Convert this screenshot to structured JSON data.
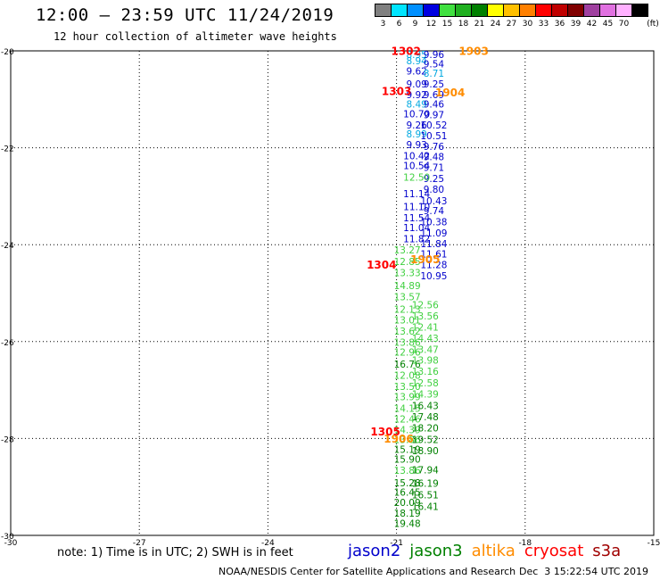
{
  "header": {
    "title": "12:00 – 23:59 UTC 11/24/2019",
    "subtitle": "12 hour collection of altimeter wave heights"
  },
  "colorbar": {
    "unit_label": "(ft)",
    "bins": [
      {
        "label": "3",
        "color": "#808080"
      },
      {
        "label": "6",
        "color": "#00e5ff"
      },
      {
        "label": "9",
        "color": "#0090ff"
      },
      {
        "label": "12",
        "color": "#0000e0"
      },
      {
        "label": "15",
        "color": "#40e040"
      },
      {
        "label": "18",
        "color": "#20b020"
      },
      {
        "label": "21",
        "color": "#008000"
      },
      {
        "label": "24",
        "color": "#ffff00"
      },
      {
        "label": "27",
        "color": "#ffc000"
      },
      {
        "label": "30",
        "color": "#ff8000"
      },
      {
        "label": "33",
        "color": "#ff0000"
      },
      {
        "label": "36",
        "color": "#c00000"
      },
      {
        "label": "39",
        "color": "#800000"
      },
      {
        "label": "42",
        "color": "#a040a0"
      },
      {
        "label": "45",
        "color": "#e070e0"
      },
      {
        "label": "70",
        "color": "#ffb0ff"
      },
      {
        "label": "",
        "color": "#000000"
      }
    ]
  },
  "chart_data": {
    "type": "scatter",
    "title": "12:00 – 23:59 UTC 11/24/2019",
    "subtitle": "12 hour collection of altimeter wave heights",
    "xlim": [
      -30,
      -15
    ],
    "ylim": [
      -30,
      -20
    ],
    "x_ticks": [
      "-30",
      "-27",
      "-24",
      "-21",
      "-18",
      "-15"
    ],
    "y_ticks": [
      "-20",
      "-22",
      "-24",
      "-26",
      "-28",
      "-30"
    ],
    "grid": true,
    "series": [
      {
        "name": "jason2",
        "color": "#0000cc",
        "points": [
          {
            "x": -20.53,
            "y": -20.07,
            "v": "8.95",
            "c": "#00a8e0"
          },
          {
            "x": -20.53,
            "y": -20.2,
            "v": "8.94",
            "c": "#00a8e0"
          },
          {
            "x": -20.53,
            "y": -20.41,
            "v": "9.62"
          },
          {
            "x": -20.53,
            "y": -20.68,
            "v": "9.09"
          },
          {
            "x": -20.53,
            "y": -20.9,
            "v": "9.92"
          },
          {
            "x": -20.53,
            "y": -21.1,
            "v": "8.49",
            "c": "#00a8e0"
          },
          {
            "x": -20.53,
            "y": -21.3,
            "v": "10.70"
          },
          {
            "x": -20.53,
            "y": -21.53,
            "v": "9.26"
          },
          {
            "x": -20.53,
            "y": -21.71,
            "v": "8.99",
            "c": "#00a8e0"
          },
          {
            "x": -20.53,
            "y": -21.93,
            "v": "9.93"
          },
          {
            "x": -20.53,
            "y": -22.16,
            "v": "10.42"
          },
          {
            "x": -20.53,
            "y": -22.37,
            "v": "10.54"
          },
          {
            "x": -20.53,
            "y": -22.95,
            "v": "11.14"
          },
          {
            "x": -20.53,
            "y": -23.21,
            "v": "11.10"
          },
          {
            "x": -20.53,
            "y": -23.44,
            "v": "11.54"
          },
          {
            "x": -20.53,
            "y": -23.65,
            "v": "11.04"
          },
          {
            "x": -20.53,
            "y": -23.88,
            "v": "11.82"
          },
          {
            "x": -20.13,
            "y": -20.07,
            "v": "9.96"
          },
          {
            "x": -20.13,
            "y": -20.27,
            "v": "9.54"
          },
          {
            "x": -20.13,
            "y": -20.46,
            "v": "8.71",
            "c": "#00a8e0"
          },
          {
            "x": -20.13,
            "y": -20.68,
            "v": "9.25"
          },
          {
            "x": -20.13,
            "y": -20.9,
            "v": "9.69"
          },
          {
            "x": -20.13,
            "y": -21.1,
            "v": "9.46"
          },
          {
            "x": -20.13,
            "y": -21.32,
            "v": "9.97"
          },
          {
            "x": -20.13,
            "y": -21.53,
            "v": "10.52"
          },
          {
            "x": -20.13,
            "y": -21.75,
            "v": "10.51"
          },
          {
            "x": -20.13,
            "y": -21.97,
            "v": "9.76"
          },
          {
            "x": -20.13,
            "y": -22.18,
            "v": "9.48"
          },
          {
            "x": -20.13,
            "y": -22.4,
            "v": "9.71"
          },
          {
            "x": -20.13,
            "y": -22.63,
            "v": "9.25"
          },
          {
            "x": -20.13,
            "y": -22.85,
            "v": "9.80"
          },
          {
            "x": -20.13,
            "y": -23.09,
            "v": "10.43"
          },
          {
            "x": -20.13,
            "y": -23.3,
            "v": "9.74"
          },
          {
            "x": -20.13,
            "y": -23.53,
            "v": "10.38"
          },
          {
            "x": -20.13,
            "y": -23.76,
            "v": "11.09"
          },
          {
            "x": -20.13,
            "y": -23.98,
            "v": "11.84"
          },
          {
            "x": -20.13,
            "y": -24.19,
            "v": "11.61"
          },
          {
            "x": -20.13,
            "y": -24.41,
            "v": "11.28"
          },
          {
            "x": -20.13,
            "y": -24.64,
            "v": "10.95"
          }
        ]
      },
      {
        "name": "jason3",
        "color": "#008000",
        "points": [
          {
            "x": -20.53,
            "y": -22.61,
            "v": "12.50",
            "c": "#40d040"
          },
          {
            "x": -20.75,
            "y": -24.11,
            "v": "13.27",
            "c": "#40d040"
          },
          {
            "x": -20.75,
            "y": -24.35,
            "v": "12.85",
            "c": "#40d040"
          },
          {
            "x": -20.75,
            "y": -24.58,
            "v": "13.33",
            "c": "#40d040"
          },
          {
            "x": -20.75,
            "y": -24.84,
            "v": "14.89",
            "c": "#40d040"
          },
          {
            "x": -20.75,
            "y": -25.07,
            "v": "13.57",
            "c": "#40d040"
          },
          {
            "x": -20.75,
            "y": -25.33,
            "v": "12.13",
            "c": "#40d040"
          },
          {
            "x": -20.75,
            "y": -25.55,
            "v": "13.01",
            "c": "#40d040"
          },
          {
            "x": -20.75,
            "y": -25.78,
            "v": "13.62",
            "c": "#40d040"
          },
          {
            "x": -20.75,
            "y": -26.01,
            "v": "13.86",
            "c": "#40d040"
          },
          {
            "x": -20.75,
            "y": -26.22,
            "v": "12.96",
            "c": "#40d040"
          },
          {
            "x": -20.75,
            "y": -26.46,
            "v": "16.76",
            "c": "#008000"
          },
          {
            "x": -20.75,
            "y": -26.69,
            "v": "12.08",
            "c": "#40d040"
          },
          {
            "x": -20.75,
            "y": -26.92,
            "v": "13.50",
            "c": "#40d040"
          },
          {
            "x": -20.75,
            "y": -27.14,
            "v": "13.99",
            "c": "#40d040"
          },
          {
            "x": -20.75,
            "y": -27.38,
            "v": "14.15",
            "c": "#40d040"
          },
          {
            "x": -20.75,
            "y": -27.6,
            "v": "12.46",
            "c": "#40d040"
          },
          {
            "x": -20.75,
            "y": -27.82,
            "v": "14.39",
            "c": "#40d040"
          },
          {
            "x": -20.75,
            "y": -28.02,
            "v": "13.86",
            "c": "#40d040"
          },
          {
            "x": -20.75,
            "y": -28.22,
            "v": "15.19",
            "c": "#008000"
          },
          {
            "x": -20.75,
            "y": -28.43,
            "v": "15.90",
            "c": "#008000"
          },
          {
            "x": -20.75,
            "y": -28.66,
            "v": "13.86",
            "c": "#40d040"
          },
          {
            "x": -20.75,
            "y": -28.91,
            "v": "15.28",
            "c": "#008000"
          },
          {
            "x": -20.75,
            "y": -29.11,
            "v": "16.45",
            "c": "#008000"
          },
          {
            "x": -20.75,
            "y": -29.32,
            "v": "20.09",
            "c": "#008000"
          },
          {
            "x": -20.75,
            "y": -29.54,
            "v": "18.19",
            "c": "#008000"
          },
          {
            "x": -20.75,
            "y": -29.75,
            "v": "19.48",
            "c": "#008000"
          },
          {
            "x": -20.33,
            "y": -25.24,
            "v": "12.56",
            "c": "#40d040"
          },
          {
            "x": -20.33,
            "y": -25.47,
            "v": "13.56",
            "c": "#40d040"
          },
          {
            "x": -20.33,
            "y": -25.7,
            "v": "12.41",
            "c": "#40d040"
          },
          {
            "x": -20.33,
            "y": -25.93,
            "v": "14.43",
            "c": "#40d040"
          },
          {
            "x": -20.33,
            "y": -26.16,
            "v": "13.47",
            "c": "#40d040"
          },
          {
            "x": -20.33,
            "y": -26.38,
            "v": "13.98",
            "c": "#40d040"
          },
          {
            "x": -20.33,
            "y": -26.61,
            "v": "13.16",
            "c": "#40d040"
          },
          {
            "x": -20.33,
            "y": -26.85,
            "v": "12.58",
            "c": "#40d040"
          },
          {
            "x": -20.33,
            "y": -27.08,
            "v": "14.39",
            "c": "#40d040"
          },
          {
            "x": -20.33,
            "y": -27.32,
            "v": "16.43",
            "c": "#008000"
          },
          {
            "x": -20.33,
            "y": -27.55,
            "v": "17.48",
            "c": "#008000"
          },
          {
            "x": -20.33,
            "y": -27.78,
            "v": "18.20",
            "c": "#008000"
          },
          {
            "x": -20.33,
            "y": -28.02,
            "v": "19.52",
            "c": "#008000"
          },
          {
            "x": -20.33,
            "y": -28.25,
            "v": "18.90",
            "c": "#008000"
          },
          {
            "x": -20.33,
            "y": -28.65,
            "v": "17.94",
            "c": "#008000"
          },
          {
            "x": -20.33,
            "y": -28.92,
            "v": "16.19",
            "c": "#008000"
          },
          {
            "x": -20.33,
            "y": -29.16,
            "v": "16.51",
            "c": "#008000"
          },
          {
            "x": -20.33,
            "y": -29.4,
            "v": "16.41",
            "c": "#008000"
          }
        ]
      },
      {
        "name": "altika",
        "color": "#ff8c00",
        "points": [
          {
            "x": -19.2,
            "y": -20.01,
            "v": "1903"
          },
          {
            "x": -19.75,
            "y": -20.87,
            "v": "1904"
          },
          {
            "x": -20.33,
            "y": -24.31,
            "v": "1905"
          },
          {
            "x": -20.95,
            "y": -28.01,
            "v": "1906"
          }
        ]
      },
      {
        "name": "cryosat",
        "color": "#ff0000",
        "points": [
          {
            "x": -20.78,
            "y": -20.01,
            "v": "1302"
          },
          {
            "x": -21.0,
            "y": -20.84,
            "v": "1303"
          },
          {
            "x": -21.35,
            "y": -24.42,
            "v": "1304"
          },
          {
            "x": -21.26,
            "y": -27.86,
            "v": "1305"
          }
        ]
      },
      {
        "name": "s3a",
        "color": "#a00000",
        "points": []
      }
    ]
  },
  "footer": {
    "note": "note: 1) Time is in UTC; 2) SWH is in feet",
    "satellites": [
      {
        "name": "jason2",
        "color": "#0000cc"
      },
      {
        "name": "jason3",
        "color": "#008000"
      },
      {
        "name": "altika",
        "color": "#ff8c00"
      },
      {
        "name": "cryosat",
        "color": "#ff0000"
      },
      {
        "name": "s3a",
        "color": "#a00000"
      }
    ],
    "credit": "NOAA/NESDIS Center for Satellite Applications and Research",
    "timestamp": "Dec  3 15:22:54 UTC 2019"
  }
}
